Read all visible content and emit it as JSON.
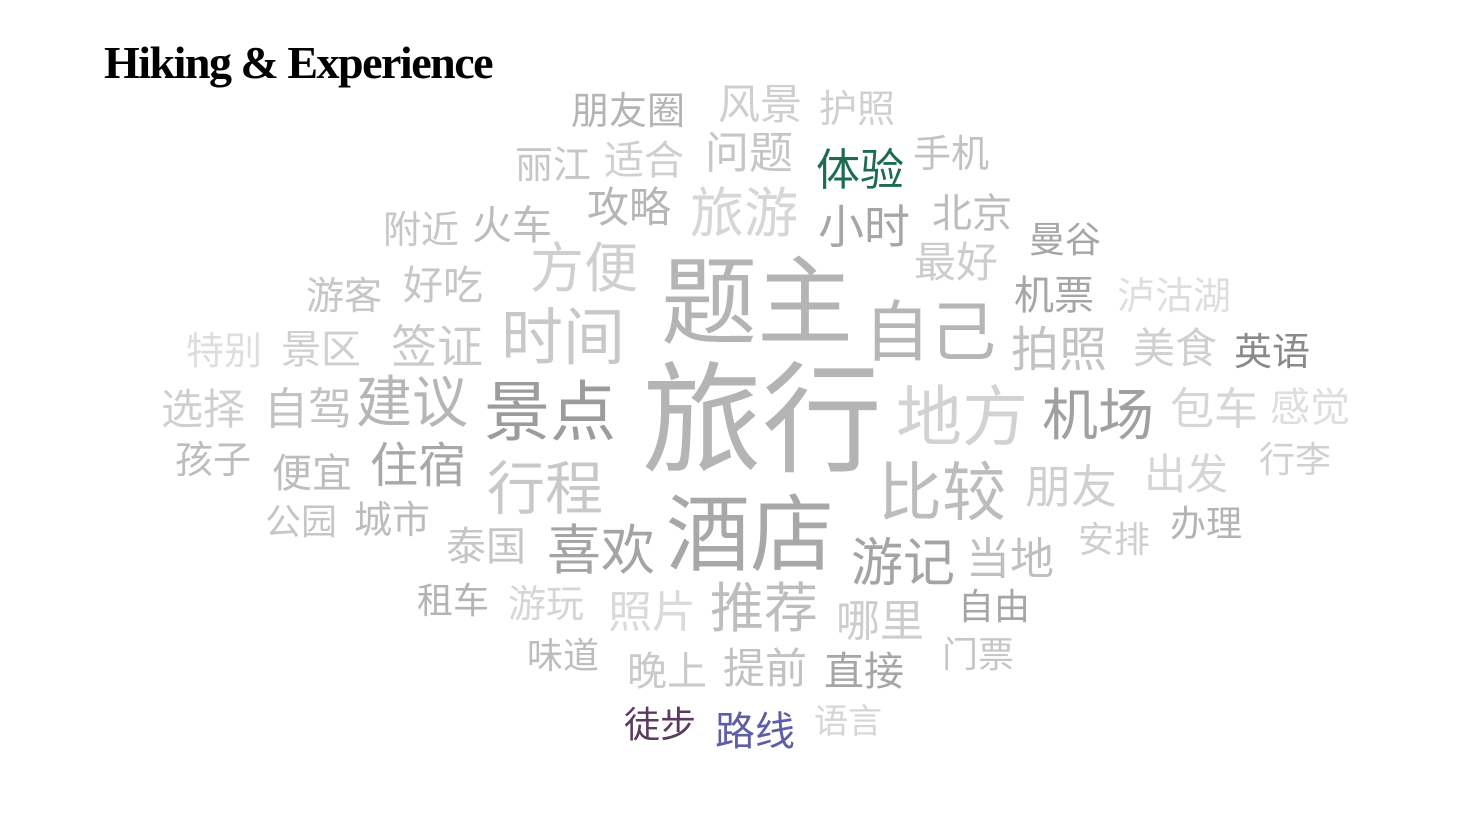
{
  "title": "Hiking & Experience",
  "chart_data": {
    "type": "wordcloud",
    "title": "Hiking & Experience",
    "highlight_colors": {
      "体验": "#1f6b50",
      "徒步": "#5a3a5e",
      "路线": "#5c5ea6"
    },
    "words": [
      {
        "text": "旅行",
        "weight": 100,
        "color": "#b4b4b4"
      },
      {
        "text": "题主",
        "weight": 88,
        "color": "#b4b4b4"
      },
      {
        "text": "酒店",
        "weight": 78,
        "color": "#a8a8a8"
      },
      {
        "text": "景点",
        "weight": 64,
        "color": "#9c9c9c"
      },
      {
        "text": "自己",
        "weight": 62,
        "color": "#b6b6b6"
      },
      {
        "text": "地方",
        "weight": 62,
        "color": "#d2d2d2"
      },
      {
        "text": "时间",
        "weight": 60,
        "color": "#c8c8c8"
      },
      {
        "text": "比较",
        "weight": 58,
        "color": "#bcbcbc"
      },
      {
        "text": "机场",
        "weight": 54,
        "color": "#a0a0a0"
      },
      {
        "text": "行程",
        "weight": 54,
        "color": "#c8c8c8"
      },
      {
        "text": "建议",
        "weight": 54,
        "color": "#b6b6b6"
      },
      {
        "text": "喜欢",
        "weight": 50,
        "color": "#a4a4a4"
      },
      {
        "text": "方便",
        "weight": 50,
        "color": "#cfcfcf"
      },
      {
        "text": "旅游",
        "weight": 50,
        "color": "#d6d6d6"
      },
      {
        "text": "推荐",
        "weight": 50,
        "color": "#bdbdbd"
      },
      {
        "text": "游记",
        "weight": 48,
        "color": "#a4a4a4"
      },
      {
        "text": "拍照",
        "weight": 46,
        "color": "#c2c2c2"
      },
      {
        "text": "住宿",
        "weight": 46,
        "color": "#a8a8a8"
      },
      {
        "text": "小时",
        "weight": 44,
        "color": "#a6a6a6"
      },
      {
        "text": "朋友",
        "weight": 44,
        "color": "#d0d0d0"
      },
      {
        "text": "签证",
        "weight": 44,
        "color": "#cacaca"
      },
      {
        "text": "自驾",
        "weight": 42,
        "color": "#c2c2c2"
      },
      {
        "text": "当地",
        "weight": 42,
        "color": "#bfbfbf"
      },
      {
        "text": "问题",
        "weight": 42,
        "color": "#c6c6c6"
      },
      {
        "text": "照片",
        "weight": 42,
        "color": "#dadada"
      },
      {
        "text": "包车",
        "weight": 42,
        "color": "#d6d6d6"
      },
      {
        "text": "体验",
        "weight": 42,
        "color": "#1f6b50"
      },
      {
        "text": "哪里",
        "weight": 42,
        "color": "#cdcdcd"
      },
      {
        "text": "提前",
        "weight": 40,
        "color": "#c2c2c2"
      },
      {
        "text": "攻略",
        "weight": 40,
        "color": "#b6b6b6"
      },
      {
        "text": "最好",
        "weight": 40,
        "color": "#cdcdcd"
      },
      {
        "text": "风景",
        "weight": 40,
        "color": "#cfcfcf"
      },
      {
        "text": "选择",
        "weight": 40,
        "color": "#cfcfcf"
      },
      {
        "text": "美食",
        "weight": 40,
        "color": "#d0d0d0"
      },
      {
        "text": "出发",
        "weight": 40,
        "color": "#d6d6d6"
      },
      {
        "text": "景区",
        "weight": 40,
        "color": "#cfcfcf"
      },
      {
        "text": "泰国",
        "weight": 40,
        "color": "#c6c6c6"
      },
      {
        "text": "朋友圈",
        "weight": 38,
        "color": "#b4b4b4"
      },
      {
        "text": "适合",
        "weight": 38,
        "color": "#cfcfcf"
      },
      {
        "text": "好吃",
        "weight": 38,
        "color": "#c6c6c6"
      },
      {
        "text": "机票",
        "weight": 38,
        "color": "#a6a6a6"
      },
      {
        "text": "北京",
        "weight": 38,
        "color": "#bcbcbc"
      },
      {
        "text": "火车",
        "weight": 38,
        "color": "#bcbcbc"
      },
      {
        "text": "晚上",
        "weight": 38,
        "color": "#cacaca"
      },
      {
        "text": "直接",
        "weight": 38,
        "color": "#a6a6a6"
      },
      {
        "text": "感觉",
        "weight": 38,
        "color": "#dedede"
      },
      {
        "text": "泸沽湖",
        "weight": 36,
        "color": "#dedede"
      },
      {
        "text": "路线",
        "weight": 36,
        "color": "#5c5ea6"
      },
      {
        "text": "便宜",
        "weight": 36,
        "color": "#bdbdbd"
      },
      {
        "text": "游玩",
        "weight": 36,
        "color": "#d6d6d6"
      },
      {
        "text": "城市",
        "weight": 36,
        "color": "#bcbcbc"
      },
      {
        "text": "英语",
        "weight": 36,
        "color": "#8a8a8a"
      },
      {
        "text": "手机",
        "weight": 36,
        "color": "#c2c2c2"
      },
      {
        "text": "护照",
        "weight": 36,
        "color": "#d0d0d0"
      },
      {
        "text": "丽江",
        "weight": 36,
        "color": "#c6c6c6"
      },
      {
        "text": "附近",
        "weight": 36,
        "color": "#c6c6c6"
      },
      {
        "text": "游客",
        "weight": 36,
        "color": "#c6c6c6"
      },
      {
        "text": "特别",
        "weight": 36,
        "color": "#dedede"
      },
      {
        "text": "孩子",
        "weight": 36,
        "color": "#bdbdbd"
      },
      {
        "text": "公园",
        "weight": 34,
        "color": "#c6c6c6"
      },
      {
        "text": "租车",
        "weight": 34,
        "color": "#b4b4b4"
      },
      {
        "text": "自由",
        "weight": 34,
        "color": "#a6a6a6"
      },
      {
        "text": "门票",
        "weight": 34,
        "color": "#c6c6c6"
      },
      {
        "text": "味道",
        "weight": 34,
        "color": "#bdbdbd"
      },
      {
        "text": "安排",
        "weight": 34,
        "color": "#cfcfcf"
      },
      {
        "text": "办理",
        "weight": 34,
        "color": "#b4b4b4"
      },
      {
        "text": "行李",
        "weight": 34,
        "color": "#d0d0d0"
      },
      {
        "text": "曼谷",
        "weight": 34,
        "color": "#a6a6a6"
      },
      {
        "text": "徒步",
        "weight": 34,
        "color": "#5a3a5e"
      },
      {
        "text": "语言",
        "weight": 34,
        "color": "#d6d6d6"
      }
    ]
  }
}
